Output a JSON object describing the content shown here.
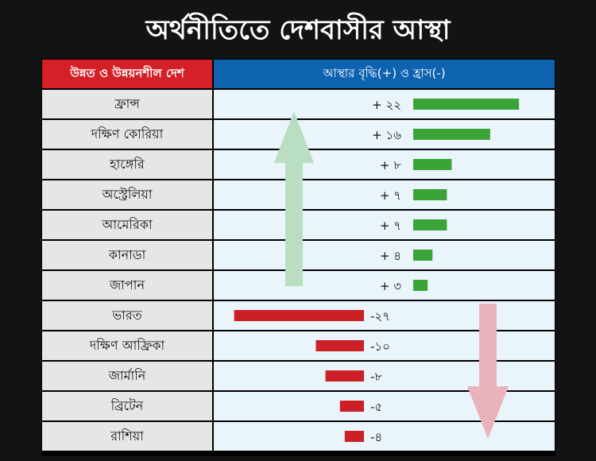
{
  "title": "অর্থনীতিতে দেশবাসীর আস্থা",
  "header": {
    "left": "উন্নত ও উন্নয়নশীল দেশ",
    "right": "আস্থার বৃদ্ধি(+) ও হ্রাস(-)"
  },
  "colors": {
    "header_left": "#d62027",
    "header_right": "#0e63b1",
    "positive_bar": "#3aa536",
    "negative_bar": "#cc1f26",
    "up_arrow": "#b9dec2",
    "down_arrow": "#e8b3bb"
  },
  "chart_data": {
    "type": "bar",
    "orientation": "horizontal",
    "categories": [
      "ফ্রান্স",
      "দক্ষিণ কোরিয়া",
      "হাঙ্গেরি",
      "অস্ট্রেলিয়া",
      "আমেরিকা",
      "কানাডা",
      "জাপান",
      "ভারত",
      "দক্ষিণ আফ্রিকা",
      "জার্মানি",
      "ব্রিটেন",
      "রাশিয়া"
    ],
    "values": [
      22,
      16,
      8,
      7,
      7,
      4,
      3,
      -27,
      -10,
      -8,
      -5,
      -4
    ],
    "labels": [
      "+ ২২",
      "+ ১৬",
      "+ ৮",
      "+ ৭",
      "+ ৭",
      "+ ৪",
      "+ ৩",
      "-২৭",
      "-১০",
      "-৮",
      "-৫",
      "-৪"
    ]
  }
}
